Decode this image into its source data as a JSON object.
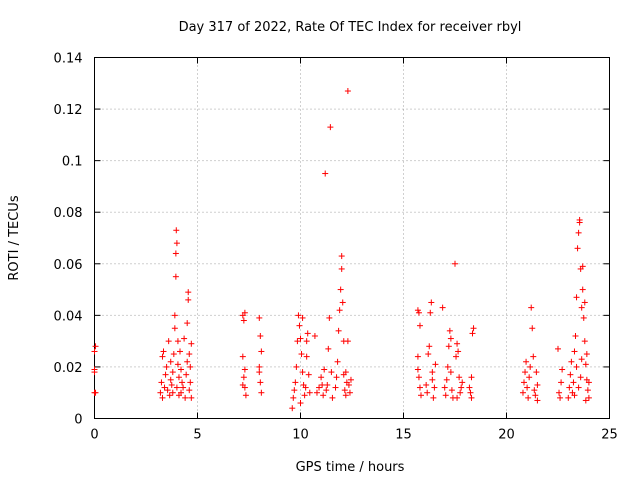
{
  "chart_data": {
    "type": "scatter",
    "title": "Day 317 of 2022, Rate Of TEC Index for receiver rbyl",
    "xlabel": "GPS time / hours",
    "ylabel": "ROTI / TECUs",
    "xlim": [
      0,
      25
    ],
    "ylim": [
      0,
      0.14
    ],
    "xticks": [
      0,
      5,
      10,
      15,
      20,
      25
    ],
    "yticks": [
      0,
      0.02,
      0.04,
      0.06,
      0.08,
      0.1,
      0.12,
      0.14
    ],
    "xtick_labels": [
      "0",
      "5",
      "10",
      "15",
      "20",
      "25"
    ],
    "ytick_labels": [
      "0",
      "0.02",
      "0.04",
      "0.06",
      "0.08",
      "0.1",
      "0.12",
      "0.14"
    ],
    "grid": true,
    "marker": "+",
    "color": "#ff0000",
    "series": [
      {
        "name": "ROTI",
        "points": [
          [
            0.0,
            0.01
          ],
          [
            0.0,
            0.019
          ],
          [
            0.0,
            0.026
          ],
          [
            0.05,
            0.028
          ],
          [
            0.05,
            0.01
          ],
          [
            0.0,
            0.018
          ],
          [
            3.2,
            0.01
          ],
          [
            3.25,
            0.014
          ],
          [
            3.3,
            0.024
          ],
          [
            3.35,
            0.026
          ],
          [
            3.3,
            0.008
          ],
          [
            3.4,
            0.012
          ],
          [
            3.45,
            0.017
          ],
          [
            3.5,
            0.02
          ],
          [
            3.55,
            0.011
          ],
          [
            3.6,
            0.03
          ],
          [
            3.65,
            0.009
          ],
          [
            3.7,
            0.015
          ],
          [
            3.7,
            0.022
          ],
          [
            3.75,
            0.013
          ],
          [
            3.8,
            0.01
          ],
          [
            3.8,
            0.018
          ],
          [
            3.85,
            0.025
          ],
          [
            3.9,
            0.035
          ],
          [
            3.9,
            0.04
          ],
          [
            3.95,
            0.055
          ],
          [
            3.95,
            0.064
          ],
          [
            3.97,
            0.073
          ],
          [
            4.0,
            0.068
          ],
          [
            4.0,
            0.012
          ],
          [
            4.05,
            0.03
          ],
          [
            4.05,
            0.021
          ],
          [
            4.1,
            0.016
          ],
          [
            4.1,
            0.009
          ],
          [
            4.15,
            0.026
          ],
          [
            4.2,
            0.01
          ],
          [
            4.2,
            0.019
          ],
          [
            4.25,
            0.014
          ],
          [
            4.3,
            0.012
          ],
          [
            4.35,
            0.031
          ],
          [
            4.4,
            0.008
          ],
          [
            4.45,
            0.017
          ],
          [
            4.5,
            0.022
          ],
          [
            4.5,
            0.037
          ],
          [
            4.55,
            0.046
          ],
          [
            4.55,
            0.049
          ],
          [
            4.6,
            0.011
          ],
          [
            4.6,
            0.025
          ],
          [
            4.65,
            0.014
          ],
          [
            4.7,
            0.008
          ],
          [
            4.65,
            0.02
          ],
          [
            4.7,
            0.029
          ],
          [
            7.2,
            0.04
          ],
          [
            7.25,
            0.038
          ],
          [
            7.3,
            0.041
          ],
          [
            7.2,
            0.024
          ],
          [
            7.25,
            0.016
          ],
          [
            7.3,
            0.012
          ],
          [
            7.35,
            0.009
          ],
          [
            7.2,
            0.013
          ],
          [
            7.3,
            0.019
          ],
          [
            8.0,
            0.039
          ],
          [
            8.05,
            0.032
          ],
          [
            8.1,
            0.026
          ],
          [
            8.0,
            0.018
          ],
          [
            8.05,
            0.014
          ],
          [
            8.1,
            0.01
          ],
          [
            8.0,
            0.02
          ],
          [
            9.6,
            0.004
          ],
          [
            9.65,
            0.008
          ],
          [
            9.7,
            0.011
          ],
          [
            9.75,
            0.014
          ],
          [
            9.8,
            0.02
          ],
          [
            9.85,
            0.03
          ],
          [
            9.9,
            0.04
          ],
          [
            9.95,
            0.036
          ],
          [
            10.0,
            0.031
          ],
          [
            10.05,
            0.025
          ],
          [
            10.1,
            0.018
          ],
          [
            10.15,
            0.013
          ],
          [
            10.2,
            0.009
          ],
          [
            10.25,
            0.012
          ],
          [
            10.3,
            0.024
          ],
          [
            10.35,
            0.033
          ],
          [
            10.4,
            0.017
          ],
          [
            10.45,
            0.01
          ],
          [
            10.0,
            0.006
          ],
          [
            10.1,
            0.039
          ],
          [
            10.3,
            0.03
          ],
          [
            10.7,
            0.032
          ],
          [
            10.8,
            0.01
          ],
          [
            10.9,
            0.012
          ],
          [
            11.0,
            0.016
          ],
          [
            11.05,
            0.013
          ],
          [
            11.1,
            0.009
          ],
          [
            11.15,
            0.019
          ],
          [
            11.2,
            0.095
          ],
          [
            11.25,
            0.011
          ],
          [
            11.3,
            0.013
          ],
          [
            11.35,
            0.027
          ],
          [
            11.4,
            0.039
          ],
          [
            11.45,
            0.113
          ],
          [
            11.5,
            0.018
          ],
          [
            11.55,
            0.008
          ],
          [
            11.7,
            0.012
          ],
          [
            11.75,
            0.016
          ],
          [
            11.8,
            0.022
          ],
          [
            11.85,
            0.034
          ],
          [
            11.9,
            0.042
          ],
          [
            11.95,
            0.05
          ],
          [
            12.0,
            0.063
          ],
          [
            12.0,
            0.058
          ],
          [
            12.05,
            0.045
          ],
          [
            12.1,
            0.03
          ],
          [
            12.15,
            0.011
          ],
          [
            12.2,
            0.009
          ],
          [
            12.25,
            0.014
          ],
          [
            12.3,
            0.127
          ],
          [
            12.3,
            0.03
          ],
          [
            12.35,
            0.013
          ],
          [
            12.4,
            0.01
          ],
          [
            12.45,
            0.015
          ],
          [
            12.2,
            0.018
          ],
          [
            12.1,
            0.017
          ],
          [
            15.7,
            0.042
          ],
          [
            15.75,
            0.041
          ],
          [
            15.8,
            0.036
          ],
          [
            15.7,
            0.024
          ],
          [
            15.75,
            0.016
          ],
          [
            15.8,
            0.012
          ],
          [
            15.85,
            0.009
          ],
          [
            15.7,
            0.019
          ],
          [
            16.1,
            0.013
          ],
          [
            16.15,
            0.01
          ],
          [
            16.2,
            0.025
          ],
          [
            16.25,
            0.028
          ],
          [
            16.3,
            0.041
          ],
          [
            16.35,
            0.045
          ],
          [
            16.4,
            0.018
          ],
          [
            16.45,
            0.008
          ],
          [
            16.5,
            0.012
          ],
          [
            16.55,
            0.021
          ],
          [
            16.4,
            0.015
          ],
          [
            16.9,
            0.043
          ],
          [
            17.0,
            0.012
          ],
          [
            17.05,
            0.009
          ],
          [
            17.1,
            0.015
          ],
          [
            17.15,
            0.02
          ],
          [
            17.2,
            0.028
          ],
          [
            17.25,
            0.034
          ],
          [
            17.3,
            0.018
          ],
          [
            17.35,
            0.011
          ],
          [
            17.4,
            0.008
          ],
          [
            17.5,
            0.06
          ],
          [
            17.55,
            0.024
          ],
          [
            17.6,
            0.029
          ],
          [
            17.65,
            0.026
          ],
          [
            17.7,
            0.016
          ],
          [
            17.75,
            0.01
          ],
          [
            17.8,
            0.012
          ],
          [
            17.85,
            0.014
          ],
          [
            17.6,
            0.008
          ],
          [
            17.3,
            0.031
          ],
          [
            18.2,
            0.012
          ],
          [
            18.25,
            0.01
          ],
          [
            18.3,
            0.008
          ],
          [
            18.35,
            0.033
          ],
          [
            18.4,
            0.035
          ],
          [
            18.3,
            0.016
          ],
          [
            20.8,
            0.01
          ],
          [
            20.85,
            0.014
          ],
          [
            20.9,
            0.018
          ],
          [
            20.95,
            0.022
          ],
          [
            21.0,
            0.012
          ],
          [
            21.05,
            0.008
          ],
          [
            21.1,
            0.016
          ],
          [
            21.15,
            0.02
          ],
          [
            21.2,
            0.043
          ],
          [
            21.25,
            0.035
          ],
          [
            21.3,
            0.024
          ],
          [
            21.35,
            0.011
          ],
          [
            21.4,
            0.009
          ],
          [
            21.45,
            0.018
          ],
          [
            21.5,
            0.013
          ],
          [
            21.5,
            0.007
          ],
          [
            22.5,
            0.027
          ],
          [
            22.55,
            0.01
          ],
          [
            22.6,
            0.008
          ],
          [
            22.65,
            0.014
          ],
          [
            22.7,
            0.019
          ],
          [
            23.0,
            0.008
          ],
          [
            23.05,
            0.012
          ],
          [
            23.1,
            0.017
          ],
          [
            23.15,
            0.022
          ],
          [
            23.2,
            0.01
          ],
          [
            23.25,
            0.014
          ],
          [
            23.3,
            0.026
          ],
          [
            23.35,
            0.032
          ],
          [
            23.4,
            0.047
          ],
          [
            23.45,
            0.066
          ],
          [
            23.5,
            0.072
          ],
          [
            23.55,
            0.077
          ],
          [
            23.55,
            0.076
          ],
          [
            23.6,
            0.058
          ],
          [
            23.65,
            0.043
          ],
          [
            23.7,
            0.05
          ],
          [
            23.75,
            0.039
          ],
          [
            23.8,
            0.03
          ],
          [
            23.85,
            0.021
          ],
          [
            23.9,
            0.015
          ],
          [
            23.95,
            0.011
          ],
          [
            24.0,
            0.008
          ],
          [
            23.7,
            0.059
          ],
          [
            23.8,
            0.045
          ],
          [
            23.9,
            0.025
          ],
          [
            23.5,
            0.012
          ],
          [
            23.6,
            0.016
          ],
          [
            23.4,
            0.02
          ],
          [
            23.3,
            0.009
          ],
          [
            24.0,
            0.014
          ],
          [
            23.85,
            0.007
          ],
          [
            23.65,
            0.023
          ]
        ]
      }
    ]
  }
}
